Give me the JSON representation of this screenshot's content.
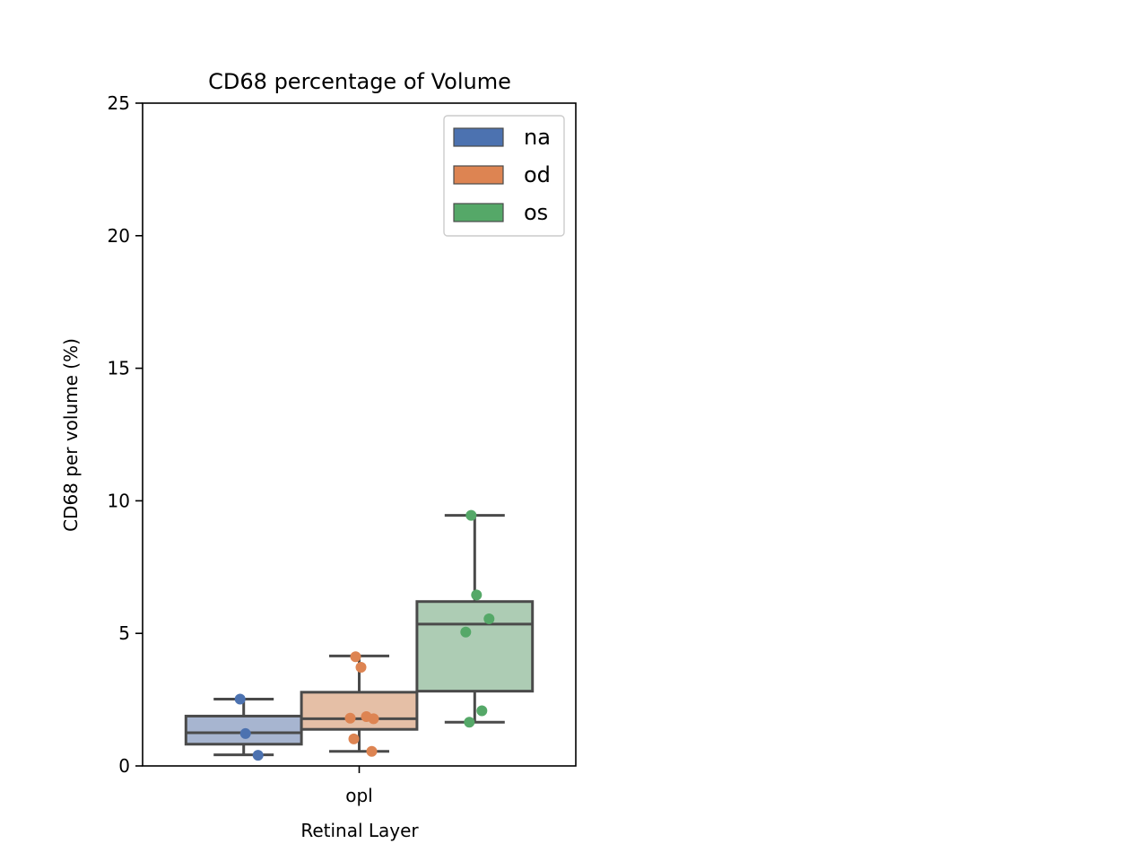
{
  "chart_data": {
    "type": "box",
    "title": "CD68 percentage of Volume",
    "xlabel": "Retinal Layer",
    "ylabel": "CD68 per volume (%)",
    "ylim": [
      0,
      25
    ],
    "yticks": [
      0,
      5,
      10,
      15,
      20,
      25
    ],
    "categories": [
      "opl"
    ],
    "legend_position": "top-right",
    "grid": false,
    "series": [
      {
        "name": "na",
        "color": "#4c72b0",
        "box_fill": "#a7b5d0",
        "box": {
          "whisker_low": 0.42,
          "q1": 0.82,
          "median": 1.25,
          "q3": 1.88,
          "whisker_high": 2.52
        },
        "points": [
          2.52,
          1.22,
          0.4
        ]
      },
      {
        "name": "od",
        "color": "#dd8452",
        "box_fill": "#e5bfa6",
        "box": {
          "whisker_low": 0.55,
          "q1": 1.38,
          "median": 1.78,
          "q3": 2.78,
          "whisker_high": 4.15
        },
        "points": [
          4.12,
          3.72,
          1.78,
          1.8,
          1.86,
          1.02,
          0.55
        ]
      },
      {
        "name": "os",
        "color": "#55a868",
        "box_fill": "#adccb4",
        "box": {
          "whisker_low": 1.65,
          "q1": 2.82,
          "median": 5.35,
          "q3": 6.2,
          "whisker_high": 9.45
        },
        "points": [
          9.45,
          6.45,
          5.55,
          5.05,
          2.08,
          1.65
        ]
      }
    ]
  }
}
